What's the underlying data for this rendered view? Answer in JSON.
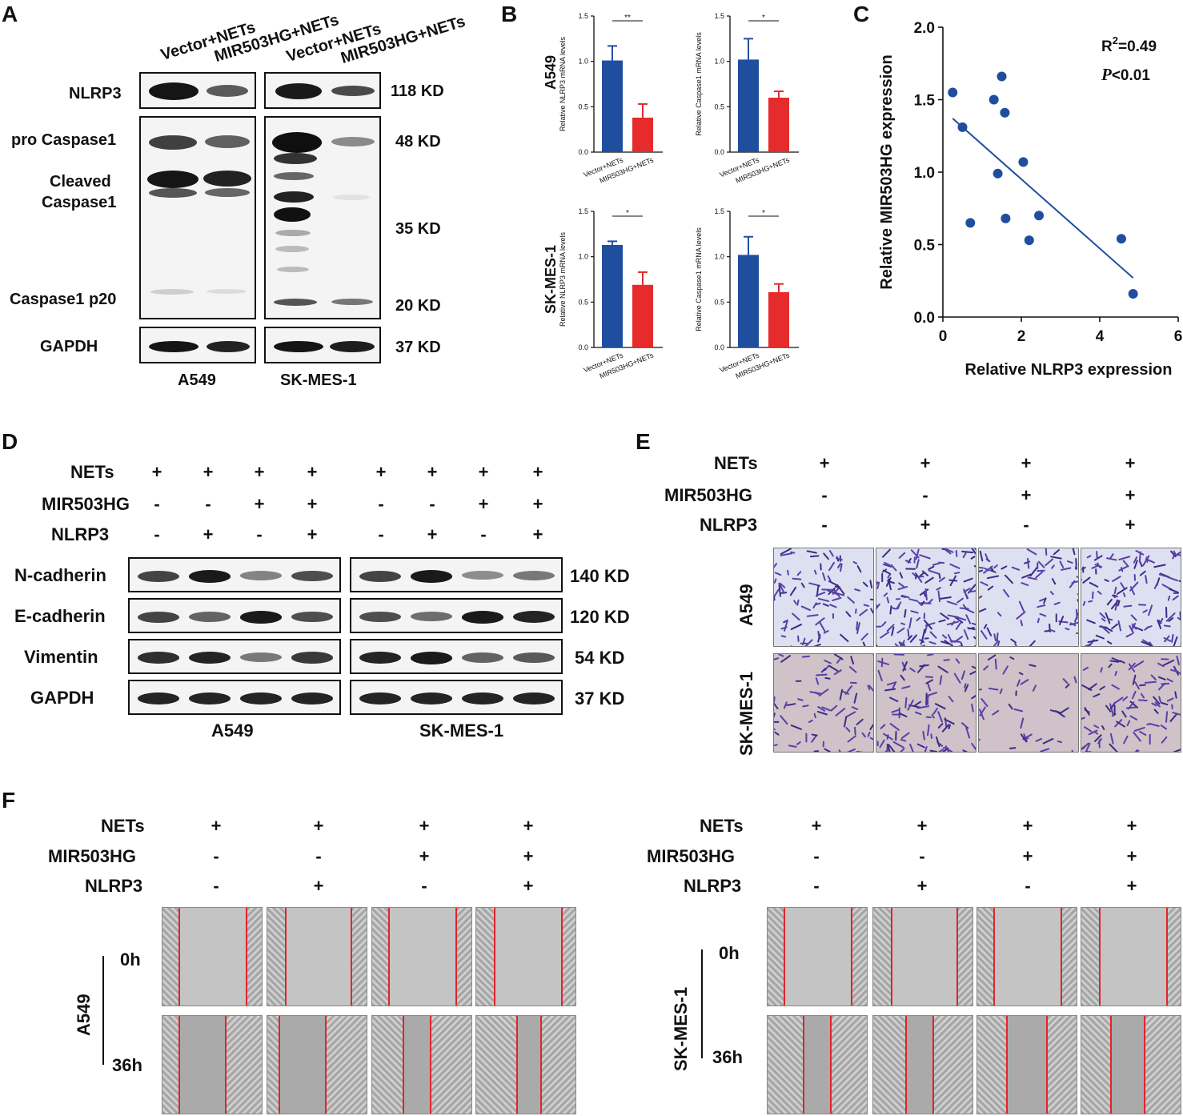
{
  "panels": {
    "A": "A",
    "B": "B",
    "C": "C",
    "D": "D",
    "E": "E",
    "F": "F"
  },
  "panelA": {
    "lanes": [
      "Vector+NETs",
      "MIR503HG+NETs",
      "Vector+NETs",
      "MIR503HG+NETs"
    ],
    "rows": [
      "NLRP3",
      "pro Caspase1",
      "Cleaved",
      "Caspase1",
      "Caspase1 p20",
      "GAPDH"
    ],
    "markers": [
      "118 KD",
      "48 KD",
      "35 KD",
      "20 KD",
      "37 KD"
    ],
    "cells": [
      "A549",
      "SK-MES-1"
    ]
  },
  "panelB": {
    "xticks": [
      "Vector+NETs",
      "MIR503HG+NETs"
    ],
    "rowlabels": [
      "A549",
      "SK-MES-1"
    ],
    "colors": {
      "vector": "#1f4e9f",
      "mir": "#e52b2b"
    },
    "chart_data": [
      {
        "type": "bar",
        "cell": "A549",
        "ylabel": "Relative NLRP3 mRNA levels",
        "ylim": [
          0,
          1.5
        ],
        "yticks": [
          "0.0",
          "0.5",
          "1.0",
          "1.5"
        ],
        "categories": [
          "Vector+NETs",
          "MIR503HG+NETs"
        ],
        "values": [
          1.01,
          0.38
        ],
        "errors": [
          0.16,
          0.15
        ],
        "sig": "**"
      },
      {
        "type": "bar",
        "cell": "A549",
        "ylabel": "Relative Caspase1 mRNA levels",
        "ylim": [
          0,
          1.5
        ],
        "yticks": [
          "0.0",
          "0.5",
          "1.0",
          "1.5"
        ],
        "categories": [
          "Vector+NETs",
          "MIR503HG+NETs"
        ],
        "values": [
          1.02,
          0.6
        ],
        "errors": [
          0.23,
          0.07
        ],
        "sig": "*"
      },
      {
        "type": "bar",
        "cell": "SK-MES-1",
        "ylabel": "Relative NLRP3 mRNA levels",
        "ylim": [
          0,
          1.5
        ],
        "yticks": [
          "0.0",
          "0.5",
          "1.0",
          "1.5"
        ],
        "categories": [
          "Vector+NETs",
          "MIR503HG+NETs"
        ],
        "values": [
          1.13,
          0.69
        ],
        "errors": [
          0.04,
          0.14
        ],
        "sig": "*"
      },
      {
        "type": "bar",
        "cell": "SK-MES-1",
        "ylabel": "Relative Caspase1 mRNA levels",
        "ylim": [
          0,
          1.5
        ],
        "yticks": [
          "0.0",
          "0.5",
          "1.0",
          "1.5"
        ],
        "categories": [
          "Vector+NETs",
          "MIR503HG+NETs"
        ],
        "values": [
          1.02,
          0.61
        ],
        "errors": [
          0.2,
          0.09
        ],
        "sig": "*"
      }
    ]
  },
  "panelC": {
    "chart_data": {
      "type": "scatter",
      "xlabel": "Relative NLRP3 expression",
      "ylabel": "Relative MIR503HG expression",
      "xlim": [
        0,
        6
      ],
      "ylim": [
        0,
        2.0
      ],
      "xticks": [
        "0",
        "2",
        "4",
        "6"
      ],
      "yticks": [
        "0.0",
        "0.5",
        "1.0",
        "1.5",
        "2.0"
      ],
      "points": [
        [
          0.25,
          1.55
        ],
        [
          0.5,
          1.31
        ],
        [
          0.7,
          0.65
        ],
        [
          1.3,
          1.5
        ],
        [
          1.4,
          0.99
        ],
        [
          1.5,
          1.66
        ],
        [
          1.58,
          1.41
        ],
        [
          1.6,
          0.68
        ],
        [
          2.05,
          1.07
        ],
        [
          2.2,
          0.53
        ],
        [
          2.45,
          0.7
        ],
        [
          4.55,
          0.54
        ],
        [
          4.85,
          0.16
        ]
      ],
      "fit": [
        [
          0.25,
          1.37
        ],
        [
          4.85,
          0.27
        ]
      ],
      "point_color": "#1f4e9f",
      "r2_label": "R",
      "r2_sup": "2",
      "r2_value": "=0.49",
      "p_label": "P",
      "p_value": "<0.01"
    }
  },
  "panelD": {
    "conditions": [
      "NETs",
      "MIR503HG",
      "NLRP3"
    ],
    "signs": [
      [
        "+",
        "+",
        "+",
        "+",
        "+",
        "+",
        "+",
        "+"
      ],
      [
        "-",
        "-",
        "+",
        "+",
        "-",
        "-",
        "+",
        "+"
      ],
      [
        "-",
        "+",
        "-",
        "+",
        "-",
        "+",
        "-",
        "+"
      ]
    ],
    "rows": [
      "N-cadherin",
      "E-cadherin",
      "Vimentin",
      "GAPDH"
    ],
    "markers": [
      "140 KD",
      "120 KD",
      "54 KD",
      "37 KD"
    ],
    "cells": [
      "A549",
      "SK-MES-1"
    ]
  },
  "panelE": {
    "conditions": [
      "NETs",
      "MIR503HG",
      "NLRP3"
    ],
    "signs": [
      [
        "+",
        "+",
        "+",
        "+"
      ],
      [
        "-",
        "-",
        "+",
        "+"
      ],
      [
        "-",
        "+",
        "-",
        "+"
      ]
    ],
    "cells": [
      "A549",
      "SK-MES-1"
    ]
  },
  "panelF": {
    "conditions": [
      "NETs",
      "MIR503HG",
      "NLRP3"
    ],
    "signs": [
      [
        "+",
        "+",
        "+",
        "+"
      ],
      [
        "-",
        "-",
        "+",
        "+"
      ],
      [
        "-",
        "+",
        "-",
        "+"
      ]
    ],
    "times": [
      "0h",
      "36h"
    ],
    "cells": [
      "A549",
      "SK-MES-1"
    ]
  }
}
